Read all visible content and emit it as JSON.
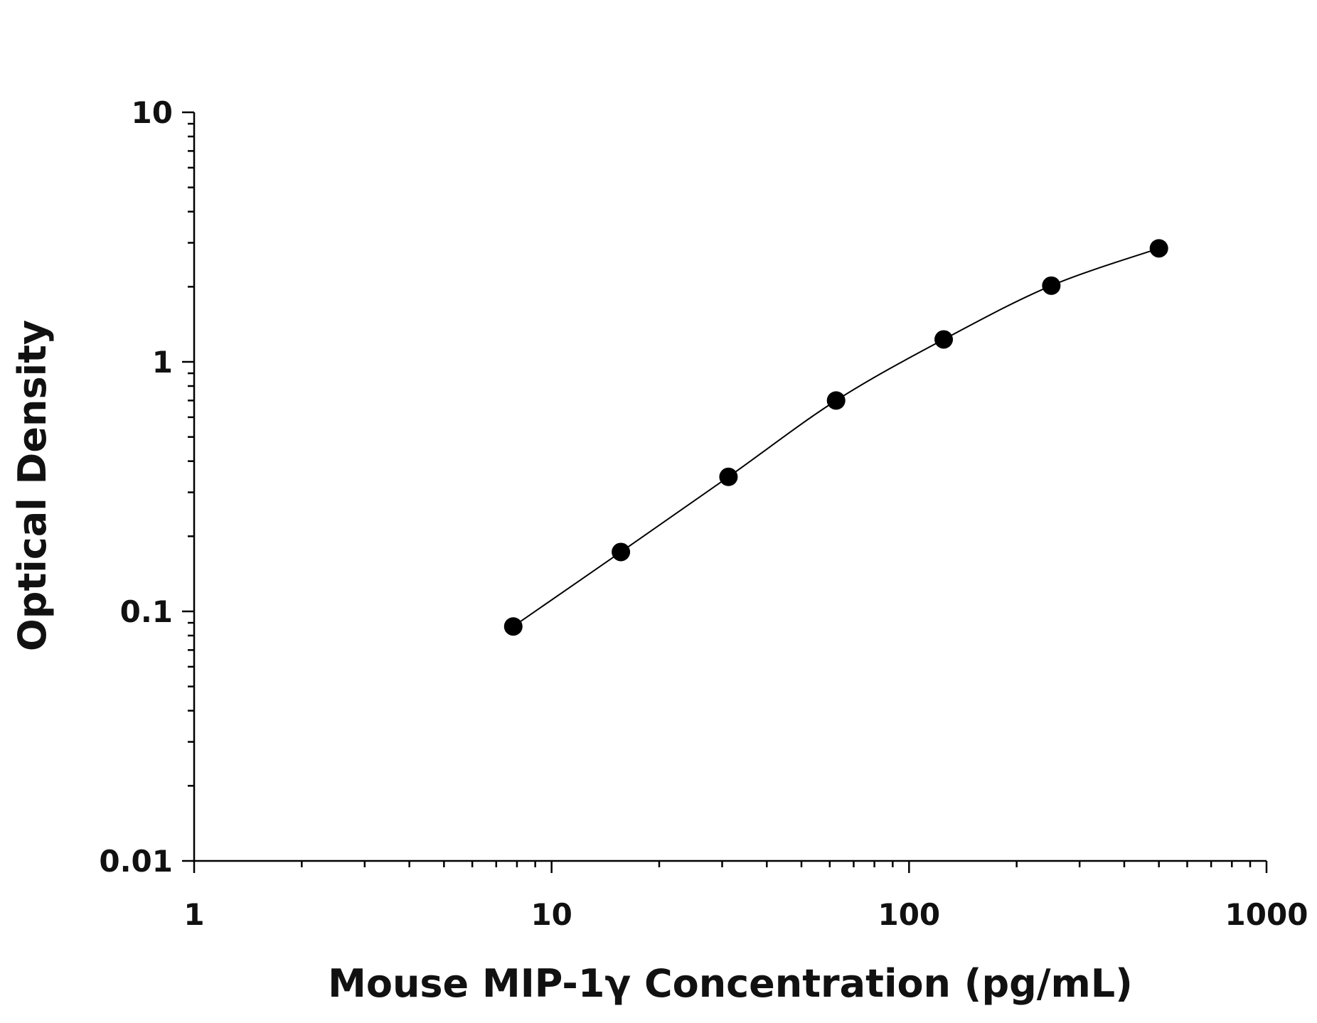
{
  "chart_data": {
    "type": "scatter",
    "x_label": "Mouse MIP-1γ Concentration (pg/mL)",
    "y_label": "Optical Density",
    "log_x": true,
    "log_y": true,
    "xlim": [
      1,
      1000
    ],
    "ylim": [
      0.01,
      10
    ],
    "xticks": [
      1,
      10,
      100,
      1000
    ],
    "yticks": [
      0.01,
      0.1,
      1,
      10
    ],
    "series": [
      {
        "color": "#000000",
        "x": [
          7.8125,
          15.625,
          31.25,
          62.5,
          125,
          250,
          500
        ],
        "values": [
          0.087,
          0.173,
          0.346,
          0.7,
          1.23,
          2.02,
          2.85
        ]
      }
    ]
  }
}
